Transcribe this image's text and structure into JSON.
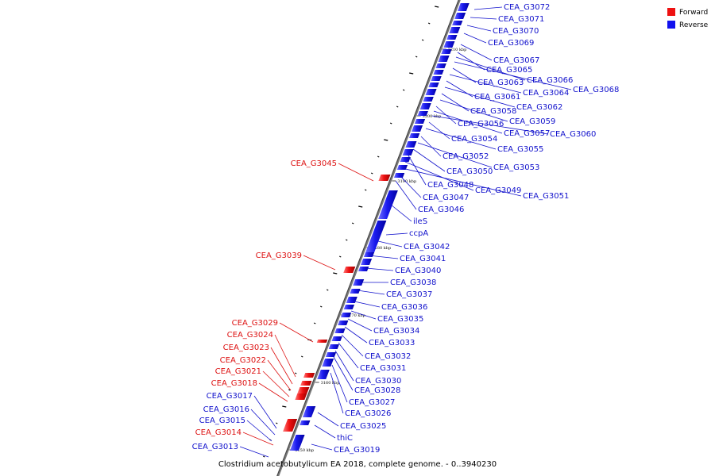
{
  "caption": "Clostridium acetobutylicum EA 2018, complete genome. - 0..3940230",
  "legend": {
    "forward_label": "Forward",
    "reverse_label": "Reverse",
    "forward_color": "#ee1111",
    "reverse_color": "#1111ee"
  },
  "ticks": [
    "3210 kbp",
    "3200 kbp",
    "3190 kbp",
    "3180 kbp",
    "3170 kbp",
    "3160 kbp",
    "3150 kbp"
  ],
  "forward_genes": [
    "CEA_G3045",
    "CEA_G3039",
    "CEA_G3029",
    "CEA_G3024",
    "CEA_G3023",
    "CEA_G3022",
    "CEA_G3021",
    "CEA_G3018",
    "CEA_G3014"
  ],
  "reverse_left_genes": [
    "CEA_G3017",
    "CEA_G3016",
    "CEA_G3015",
    "CEA_G3013"
  ],
  "reverse_genes": [
    "CEA_G3072",
    "CEA_G3071",
    "CEA_G3070",
    "CEA_G3069",
    "CEA_G3067",
    "CEA_G3065",
    "CEA_G3066",
    "CEA_G3068",
    "CEA_G3063",
    "CEA_G3064",
    "CEA_G3061",
    "CEA_G3062",
    "CEA_G3058",
    "CEA_G3059",
    "CEA_G3056",
    "CEA_G3057",
    "CEA_G3060",
    "CEA_G3054",
    "CEA_G3055",
    "CEA_G3052",
    "CEA_G3053",
    "CEA_G3050",
    "CEA_G3048",
    "CEA_G3049",
    "CEA_G3051",
    "CEA_G3047",
    "CEA_G3046",
    "ileS",
    "ccpA",
    "CEA_G3042",
    "CEA_G3041",
    "CEA_G3040",
    "CEA_G3038",
    "CEA_G3037",
    "CEA_G3036",
    "CEA_G3035",
    "CEA_G3034",
    "CEA_G3033",
    "CEA_G3032",
    "CEA_G3031",
    "CEA_G3030",
    "CEA_G3028",
    "CEA_G3027",
    "CEA_G3026",
    "CEA_G3025",
    "thiC",
    "CEA_G3019"
  ]
}
